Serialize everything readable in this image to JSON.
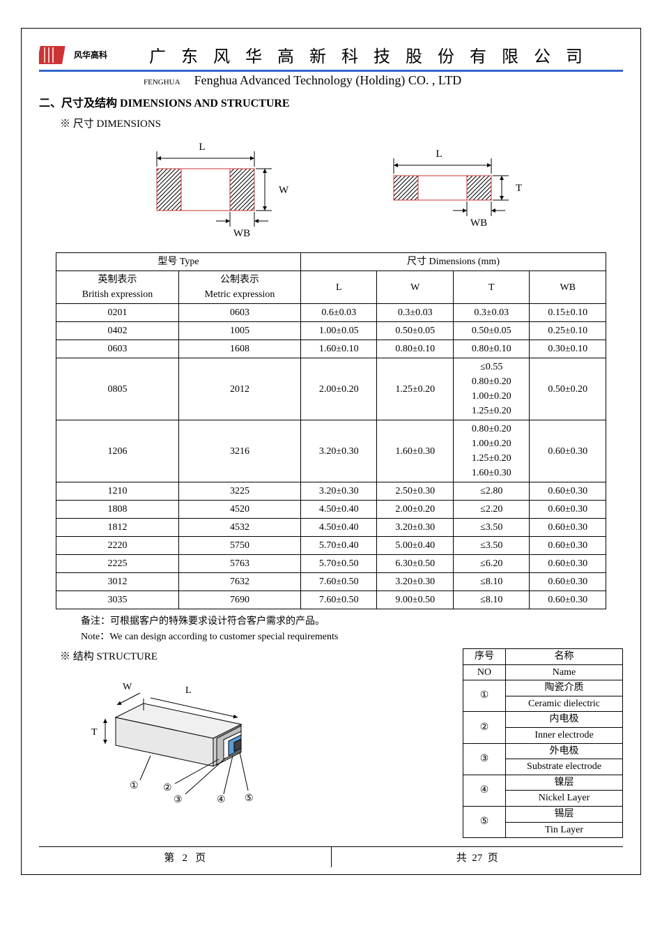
{
  "header": {
    "brand_cn": "风华高科",
    "company_cn": "广 东 风 华 高 新 科 技 股 份 有 限 公 司",
    "fenghua_small": "FENGHUA",
    "company_en": "Fenghua Advanced Technology (Holding) CO. , LTD",
    "line_color": "#3366cc",
    "logo_color": "#cc3333"
  },
  "section": {
    "title": "二、尺寸及结构    DIMENSIONS AND STRUCTURE",
    "dimensions_label": "※ 尺寸 DIMENSIONS",
    "structure_label": "※ 结构 STRUCTURE"
  },
  "diagram": {
    "L": "L",
    "W": "W",
    "T": "T",
    "WB": "WB",
    "hatch_color": "#000000",
    "outline_color": "#cc3333"
  },
  "dim_table": {
    "header_type": "型号 Type",
    "header_dim": "尺寸       Dimensions       (mm)",
    "col_british_cn": "英制表示",
    "col_british_en": "British expression",
    "col_metric_cn": "公制表示",
    "col_metric_en": "Metric expression",
    "col_L": "L",
    "col_W": "W",
    "col_T": "T",
    "col_WB": "WB",
    "rows": [
      {
        "b": "0201",
        "m": "0603",
        "L": "0.6±0.03",
        "W": "0.3±0.03",
        "T": "0.3±0.03",
        "WB": "0.15±0.10"
      },
      {
        "b": "0402",
        "m": "1005",
        "L": "1.00±0.05",
        "W": "0.50±0.05",
        "T": "0.50±0.05",
        "WB": "0.25±0.10"
      },
      {
        "b": "0603",
        "m": "1608",
        "L": "1.60±0.10",
        "W": "0.80±0.10",
        "T": "0.80±0.10",
        "WB": "0.30±0.10"
      },
      {
        "b": "0805",
        "m": "2012",
        "L": "2.00±0.20",
        "W": "1.25±0.20",
        "T": "≤0.55\n0.80±0.20\n1.00±0.20\n1.25±0.20",
        "WB": "0.50±0.20"
      },
      {
        "b": "1206",
        "m": "3216",
        "L": "3.20±0.30",
        "W": "1.60±0.30",
        "T": "0.80±0.20\n1.00±0.20\n1.25±0.20\n1.60±0.30",
        "WB": "0.60±0.30"
      },
      {
        "b": "1210",
        "m": "3225",
        "L": "3.20±0.30",
        "W": "2.50±0.30",
        "T": "≤2.80",
        "WB": "0.60±0.30"
      },
      {
        "b": "1808",
        "m": "4520",
        "L": "4.50±0.40",
        "W": "2.00±0.20",
        "T": "≤2.20",
        "WB": "0.60±0.30"
      },
      {
        "b": "1812",
        "m": "4532",
        "L": "4.50±0.40",
        "W": "3.20±0.30",
        "T": "≤3.50",
        "WB": "0.60±0.30"
      },
      {
        "b": "2220",
        "m": "5750",
        "L": "5.70±0.40",
        "W": "5.00±0.40",
        "T": "≤3.50",
        "WB": "0.60±0.30"
      },
      {
        "b": "2225",
        "m": "5763",
        "L": "5.70±0.50",
        "W": "6.30±0.50",
        "T": "≤6.20",
        "WB": "0.60±0.30"
      },
      {
        "b": "3012",
        "m": "7632",
        "L": "7.60±0.50",
        "W": "3.20±0.30",
        "T": "≤8.10",
        "WB": "0.60±0.30"
      },
      {
        "b": "3035",
        "m": "7690",
        "L": "7.60±0.50",
        "W": "9.00±0.50",
        "T": "≤8.10",
        "WB": "0.60±0.30"
      }
    ]
  },
  "notes": {
    "cn": "备注：可根据客户的特殊要求设计符合客户需求的产品。",
    "en": "Note：We can design according to customer special requirements"
  },
  "structure_table": {
    "col_no_cn": "序号",
    "col_no_en": "NO",
    "col_name_cn": "名称",
    "col_name_en": "Name",
    "rows": [
      {
        "no": "①",
        "cn": "陶瓷介质",
        "en": "Ceramic    dielectric"
      },
      {
        "no": "②",
        "cn": "内电极",
        "en": "Inner    electrode"
      },
      {
        "no": "③",
        "cn": "外电极",
        "en": "Substrate    electrode"
      },
      {
        "no": "④",
        "cn": "镍层",
        "en": "Nickel Layer"
      },
      {
        "no": "⑤",
        "cn": "锡层",
        "en": "Tin Layer"
      }
    ]
  },
  "structure_diagram": {
    "W": "W",
    "L": "L",
    "T": "T",
    "body_fill": "#e8e8e8",
    "cap_fill_silver": "#bfbfbf",
    "cap_fill_white": "#ffffff",
    "cap_fill_blue": "#5b9bd5",
    "cap_fill_dark": "#404040",
    "n1": "①",
    "n2": "②",
    "n3": "③",
    "n4": "④",
    "n5": "⑤"
  },
  "footer": {
    "page_current_label_pre": "第",
    "page_current": "2",
    "page_current_label_post": "页",
    "page_total_label_pre": "共",
    "page_total": "27",
    "page_total_label_post": "页"
  }
}
